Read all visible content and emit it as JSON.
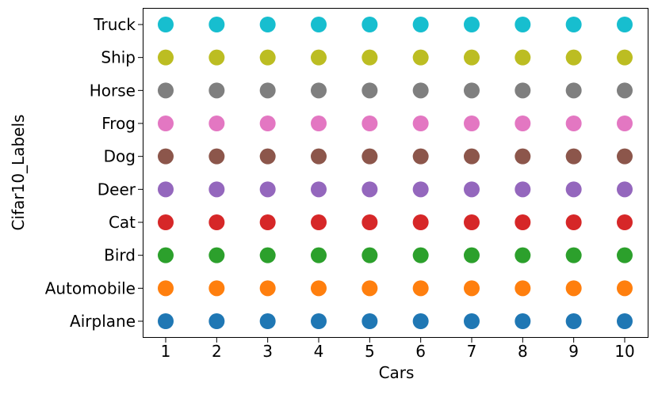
{
  "chart_data": {
    "type": "scatter",
    "title": "",
    "xlabel": "Cars",
    "ylabel": "Cifar10_Labels",
    "x": [
      1,
      2,
      3,
      4,
      5,
      6,
      7,
      8,
      9,
      10
    ],
    "x_ticks": [
      "1",
      "2",
      "3",
      "4",
      "5",
      "6",
      "7",
      "8",
      "9",
      "10"
    ],
    "y_categories": [
      "Airplane",
      "Automobile",
      "Bird",
      "Cat",
      "Deer",
      "Dog",
      "Frog",
      "Horse",
      "Ship",
      "Truck"
    ],
    "grid": false,
    "legend": "none",
    "series": [
      {
        "category": "Airplane",
        "color": "#1f77b4",
        "x": [
          1,
          2,
          3,
          4,
          5,
          6,
          7,
          8,
          9,
          10
        ]
      },
      {
        "category": "Automobile",
        "color": "#ff7f0e",
        "x": [
          1,
          2,
          3,
          4,
          5,
          6,
          7,
          8,
          9,
          10
        ]
      },
      {
        "category": "Bird",
        "color": "#2ca02c",
        "x": [
          1,
          2,
          3,
          4,
          5,
          6,
          7,
          8,
          9,
          10
        ]
      },
      {
        "category": "Cat",
        "color": "#d62728",
        "x": [
          1,
          2,
          3,
          4,
          5,
          6,
          7,
          8,
          9,
          10
        ]
      },
      {
        "category": "Deer",
        "color": "#9467bd",
        "x": [
          1,
          2,
          3,
          4,
          5,
          6,
          7,
          8,
          9,
          10
        ]
      },
      {
        "category": "Dog",
        "color": "#8c564b",
        "x": [
          1,
          2,
          3,
          4,
          5,
          6,
          7,
          8,
          9,
          10
        ]
      },
      {
        "category": "Frog",
        "color": "#e377c2",
        "x": [
          1,
          2,
          3,
          4,
          5,
          6,
          7,
          8,
          9,
          10
        ]
      },
      {
        "category": "Horse",
        "color": "#7f7f7f",
        "x": [
          1,
          2,
          3,
          4,
          5,
          6,
          7,
          8,
          9,
          10
        ]
      },
      {
        "category": "Ship",
        "color": "#bcbd22",
        "x": [
          1,
          2,
          3,
          4,
          5,
          6,
          7,
          8,
          9,
          10
        ]
      },
      {
        "category": "Truck",
        "color": "#17becf",
        "x": [
          1,
          2,
          3,
          4,
          5,
          6,
          7,
          8,
          9,
          10
        ]
      }
    ]
  }
}
